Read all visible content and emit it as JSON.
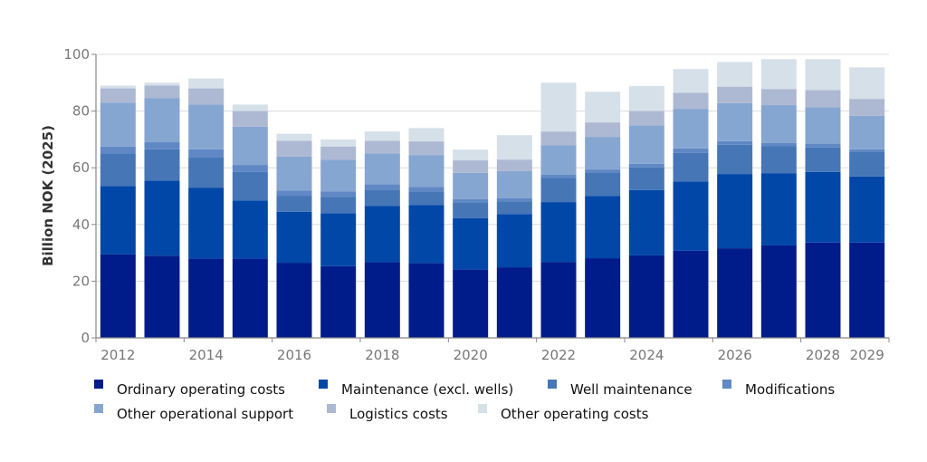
{
  "chart_data": {
    "type": "bar",
    "stacked": true,
    "title": "",
    "xlabel": "",
    "ylabel": "Billion NOK (2025)",
    "ylim": [
      0,
      100
    ],
    "yticks": [
      0,
      20,
      40,
      60,
      80,
      100
    ],
    "grid": true,
    "legend_position": "bottom",
    "categories": [
      "2012",
      "2013",
      "2014",
      "2015",
      "2016",
      "2017",
      "2018",
      "2019",
      "2020",
      "2021",
      "2022",
      "2023",
      "2024",
      "2025",
      "2026",
      "2027",
      "2028",
      "2029"
    ],
    "xtick_labels": [
      "2012",
      "2014",
      "2016",
      "2018",
      "2020",
      "2022",
      "2024",
      "2026",
      "2028",
      "2029"
    ],
    "series": [
      {
        "name": "Ordinary operating costs",
        "color": "#001c8a",
        "values": [
          29.5,
          29,
          28,
          28,
          26.5,
          25.3,
          26.7,
          26.4,
          24.2,
          24.9,
          26.8,
          28.1,
          29.1,
          30.7,
          31.6,
          32.6,
          33.6,
          33.6
        ]
      },
      {
        "name": "Maintenance (excl. wells)",
        "color": "#0047a8",
        "values": [
          24,
          26.5,
          25,
          20.5,
          18,
          18.7,
          19.8,
          20.4,
          18,
          18.8,
          21.1,
          22,
          23,
          24.5,
          26.2,
          25.5,
          24.9,
          23.3
        ]
      },
      {
        "name": "Well maintenance",
        "color": "#4676b6",
        "values": [
          11.5,
          11,
          10.8,
          10,
          5.5,
          5.8,
          5.8,
          4.9,
          5.4,
          4.5,
          8.6,
          8.3,
          8,
          10,
          10.3,
          9.6,
          8.7,
          8.6
        ]
      },
      {
        "name": "Modifications",
        "color": "#5f88c4",
        "values": [
          2.5,
          2.5,
          2.7,
          2.5,
          2,
          1.9,
          1.9,
          1.6,
          1.3,
          1,
          1,
          1,
          1.3,
          1.6,
          1.3,
          1,
          1.3,
          1
        ]
      },
      {
        "name": "Other operational support",
        "color": "#86a6d2",
        "values": [
          15.5,
          15.5,
          15.8,
          13.5,
          12,
          11.1,
          10.8,
          11.2,
          9.3,
          9.6,
          10.5,
          11.5,
          13.5,
          14,
          13.4,
          13.4,
          12.8,
          11.8
        ]
      },
      {
        "name": "Logistics costs",
        "color": "#adb9d3",
        "values": [
          5,
          4.5,
          5.7,
          5.5,
          5.5,
          4.7,
          4.5,
          4.8,
          4.4,
          4.1,
          4.8,
          5.1,
          5.1,
          5.7,
          5.8,
          5.7,
          6.1,
          6
        ]
      },
      {
        "name": "Other operating costs",
        "color": "#d6e0e9",
        "values": [
          1,
          1,
          3.5,
          2.3,
          2.5,
          2.5,
          3.3,
          4.7,
          3.8,
          8.6,
          17.2,
          10.8,
          8.8,
          8.3,
          8.7,
          10.5,
          10.9,
          11.1
        ]
      }
    ]
  }
}
